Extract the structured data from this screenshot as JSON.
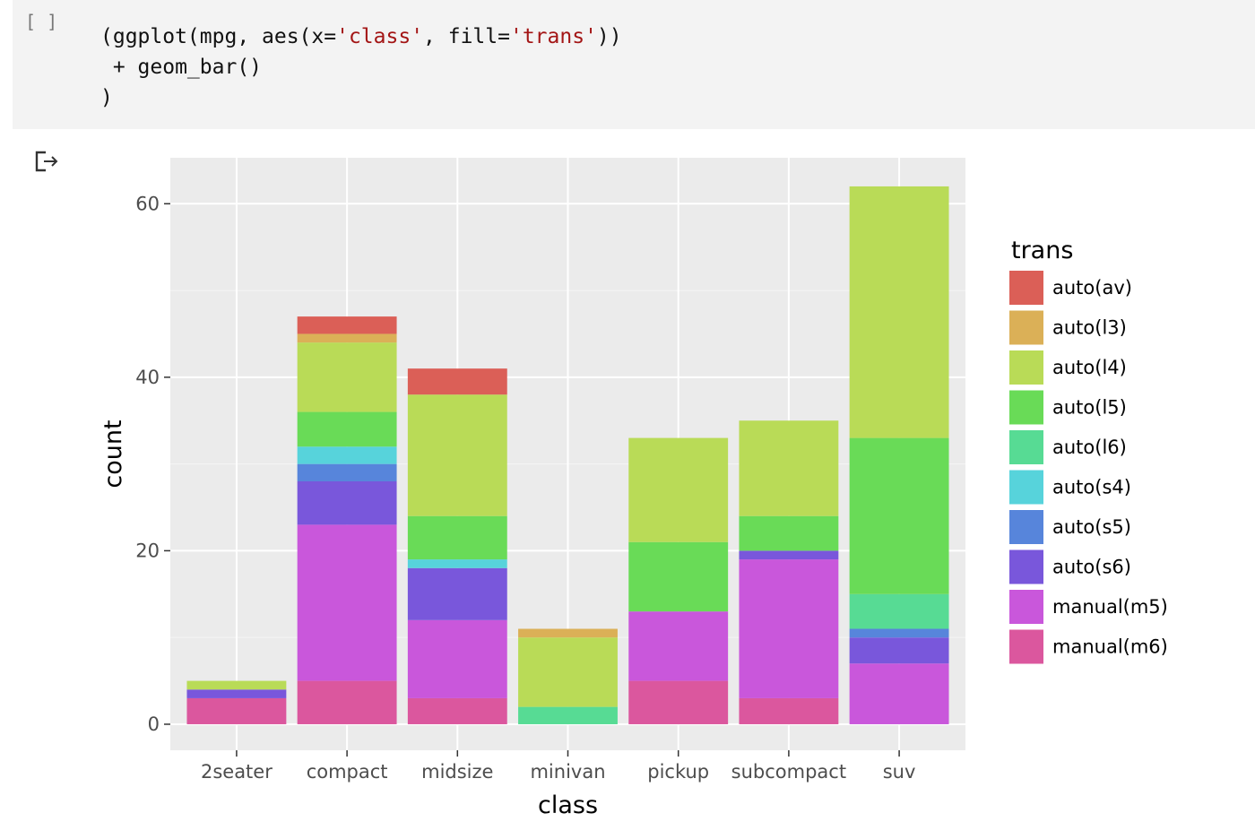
{
  "cell": {
    "prompt": "[ ]",
    "code": {
      "line1_a": "(ggplot(mpg, aes(x=",
      "line1_s1": "'class'",
      "line1_b": ", fill=",
      "line1_s2": "'trans'",
      "line1_c": "))",
      "line2": " + geom_bar()",
      "line3": ")"
    }
  },
  "output": {
    "icon": "output-arrow-icon"
  },
  "chart_data": {
    "type": "bar",
    "stacked": true,
    "categories": [
      "2seater",
      "compact",
      "midsize",
      "minivan",
      "pickup",
      "subcompact",
      "suv"
    ],
    "series": [
      {
        "name": "auto(av)",
        "color": "#db5f57",
        "values": [
          0,
          2,
          3,
          0,
          0,
          0,
          0
        ]
      },
      {
        "name": "auto(l3)",
        "color": "#dbb057",
        "values": [
          0,
          1,
          0,
          1,
          0,
          0,
          0
        ]
      },
      {
        "name": "auto(l4)",
        "color": "#b9db57",
        "values": [
          1,
          8,
          14,
          8,
          12,
          11,
          29
        ]
      },
      {
        "name": "auto(l5)",
        "color": "#69db57",
        "values": [
          0,
          4,
          5,
          0,
          8,
          4,
          18
        ]
      },
      {
        "name": "auto(l6)",
        "color": "#57db94",
        "values": [
          0,
          0,
          0,
          2,
          0,
          0,
          4
        ]
      },
      {
        "name": "auto(s4)",
        "color": "#57d3db",
        "values": [
          0,
          2,
          1,
          0,
          0,
          0,
          0
        ]
      },
      {
        "name": "auto(s5)",
        "color": "#5785db",
        "values": [
          0,
          2,
          0,
          0,
          0,
          0,
          1
        ]
      },
      {
        "name": "auto(s6)",
        "color": "#7957db",
        "values": [
          1,
          5,
          6,
          0,
          0,
          1,
          3
        ]
      },
      {
        "name": "manual(m5)",
        "color": "#c957db",
        "values": [
          0,
          18,
          9,
          0,
          8,
          16,
          7
        ]
      },
      {
        "name": "manual(m6)",
        "color": "#db579e",
        "values": [
          3,
          5,
          3,
          0,
          5,
          3,
          0
        ]
      }
    ],
    "xlabel": "class",
    "ylabel": "count",
    "yticks": [
      0,
      20,
      40,
      60
    ],
    "ylim": [
      -3,
      65.3
    ],
    "legend_title": "trans",
    "legend_position": "right",
    "grid": true,
    "panel_color": "#ebebeb"
  }
}
